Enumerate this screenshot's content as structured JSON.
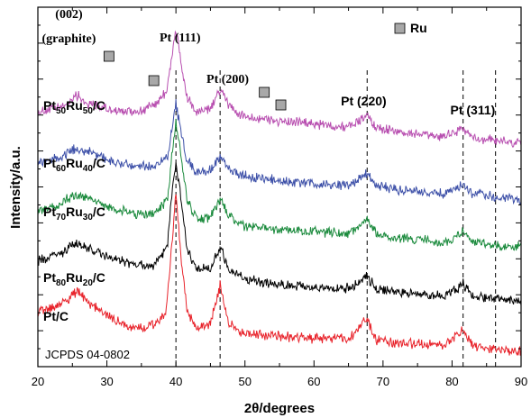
{
  "chart_data": {
    "type": "line",
    "xlabel": "2θ/degrees",
    "ylabel": "Intensity/a.u.",
    "xlim": [
      20,
      90
    ],
    "x_ticks": [
      "20",
      "30",
      "40",
      "50",
      "60",
      "70",
      "80",
      "90"
    ],
    "y_ticks_labeled": false,
    "grid": false,
    "reference_text": "JCPDS 04-0802",
    "reference_lines": [
      40.0,
      46.4,
      67.7,
      81.6,
      86.3
    ],
    "peak_labels": [
      {
        "text": "(002)",
        "x": 24.5,
        "font": "serif"
      },
      {
        "text": "(graphite)",
        "x": 24.5,
        "font": "serif"
      },
      {
        "text": "Pt (111)",
        "x": 40.6,
        "font": "serif"
      },
      {
        "text": "Pt (200)",
        "x": 47.5,
        "font": "serif"
      },
      {
        "text": "Pt (220)",
        "x": 67.2,
        "font": "sans"
      },
      {
        "text": "Pt (311)",
        "x": 83.0,
        "font": "sans"
      }
    ],
    "legend": {
      "marker": "Ru",
      "position": "top-right"
    },
    "ru_markers": [
      30.3,
      36.8,
      52.8,
      55.2
    ],
    "series": [
      {
        "label": {
          "base": "Pt",
          "sub1": "50",
          "mid": "Ru",
          "sub2": "50",
          "tail": "/C"
        },
        "color": "#b84fb0",
        "points": [
          [
            20,
            150
          ],
          [
            24,
            154
          ],
          [
            25.5,
            162
          ],
          [
            27,
            156
          ],
          [
            30,
            152
          ],
          [
            32,
            150
          ],
          [
            35,
            151
          ],
          [
            37,
            155
          ],
          [
            38.7,
            165
          ],
          [
            39.5,
            190
          ],
          [
            40.0,
            205
          ],
          [
            40.6,
            188
          ],
          [
            41.5,
            160
          ],
          [
            43,
            150
          ],
          [
            45,
            152
          ],
          [
            46.4,
            165
          ],
          [
            47.5,
            156
          ],
          [
            49,
            148
          ],
          [
            52,
            146
          ],
          [
            55,
            144
          ],
          [
            60,
            142
          ],
          [
            65,
            140
          ],
          [
            67.7,
            148
          ],
          [
            69,
            140
          ],
          [
            72,
            137
          ],
          [
            75,
            135
          ],
          [
            78,
            133
          ],
          [
            81.6,
            139
          ],
          [
            83,
            133
          ],
          [
            86,
            131
          ],
          [
            90,
            129
          ]
        ]
      },
      {
        "label": {
          "base": "Pt",
          "sub1": "60",
          "mid": "Ru",
          "sub2": "40",
          "tail": "/C"
        },
        "color": "#3d50a8",
        "points": [
          [
            20,
            116
          ],
          [
            23,
            119
          ],
          [
            25.5,
            126
          ],
          [
            28,
            122
          ],
          [
            31,
            117
          ],
          [
            34,
            114
          ],
          [
            37,
            114
          ],
          [
            38.8,
            121
          ],
          [
            39.5,
            140
          ],
          [
            40.0,
            155
          ],
          [
            40.6,
            140
          ],
          [
            41.6,
            118
          ],
          [
            43,
            110
          ],
          [
            45,
            111
          ],
          [
            46.4,
            120
          ],
          [
            47.6,
            112
          ],
          [
            50,
            107
          ],
          [
            55,
            104
          ],
          [
            60,
            102
          ],
          [
            65,
            101
          ],
          [
            67.7,
            109
          ],
          [
            69,
            101
          ],
          [
            72,
            98
          ],
          [
            76,
            96
          ],
          [
            79,
            95
          ],
          [
            81.6,
            101
          ],
          [
            83,
            95
          ],
          [
            86,
            93
          ],
          [
            90,
            91
          ]
        ]
      },
      {
        "label": {
          "base": "Pt",
          "sub1": "70",
          "mid": "Ru",
          "sub2": "30",
          "tail": "/C"
        },
        "color": "#1a8a3c",
        "points": [
          [
            20,
            84
          ],
          [
            23,
            88
          ],
          [
            25.5,
            95
          ],
          [
            28,
            91
          ],
          [
            31,
            85
          ],
          [
            34,
            82
          ],
          [
            37,
            82
          ],
          [
            38.8,
            92
          ],
          [
            39.5,
            125
          ],
          [
            40.0,
            144
          ],
          [
            40.6,
            125
          ],
          [
            41.6,
            92
          ],
          [
            43,
            78
          ],
          [
            45,
            80
          ],
          [
            46.4,
            92
          ],
          [
            47.6,
            80
          ],
          [
            50,
            74
          ],
          [
            55,
            72
          ],
          [
            60,
            70
          ],
          [
            65,
            69
          ],
          [
            67.7,
            78
          ],
          [
            69,
            69
          ],
          [
            72,
            66
          ],
          [
            76,
            64
          ],
          [
            79,
            63
          ],
          [
            81.6,
            70
          ],
          [
            83,
            63
          ],
          [
            86,
            61
          ],
          [
            90,
            60
          ]
        ]
      },
      {
        "label": {
          "base": "Pt",
          "sub1": "80",
          "mid": "Ru",
          "sub2": "20",
          "tail": "/C"
        },
        "color": "#000000",
        "points": [
          [
            20,
            50
          ],
          [
            23,
            55
          ],
          [
            25.5,
            62
          ],
          [
            28,
            57
          ],
          [
            31,
            52
          ],
          [
            34,
            48
          ],
          [
            37,
            47
          ],
          [
            38.8,
            62
          ],
          [
            39.5,
            100
          ],
          [
            40.0,
            114
          ],
          [
            40.6,
            98
          ],
          [
            41.6,
            60
          ],
          [
            43,
            44
          ],
          [
            45,
            46
          ],
          [
            46.4,
            60
          ],
          [
            47.6,
            46
          ],
          [
            50,
            38
          ],
          [
            55,
            35
          ],
          [
            60,
            33
          ],
          [
            65,
            32
          ],
          [
            67.7,
            41
          ],
          [
            69,
            32
          ],
          [
            72,
            30
          ],
          [
            76,
            28
          ],
          [
            79,
            27
          ],
          [
            81.6,
            35
          ],
          [
            83,
            27
          ],
          [
            86,
            25
          ],
          [
            90,
            23
          ]
        ]
      },
      {
        "label": {
          "base": "Pt/C"
        },
        "color": "#e8232b",
        "points": [
          [
            20,
            16
          ],
          [
            22,
            19
          ],
          [
            24,
            24
          ],
          [
            25.8,
            30
          ],
          [
            27,
            24
          ],
          [
            30,
            14
          ],
          [
            33,
            7
          ],
          [
            36,
            6
          ],
          [
            38.5,
            14
          ],
          [
            39.3,
            55
          ],
          [
            40.0,
            95
          ],
          [
            40.7,
            55
          ],
          [
            41.6,
            16
          ],
          [
            43,
            5
          ],
          [
            45,
            8
          ],
          [
            46.4,
            34
          ],
          [
            47.7,
            8
          ],
          [
            50,
            2
          ],
          [
            55,
            0
          ],
          [
            60,
            -1
          ],
          [
            65,
            -1
          ],
          [
            67.7,
            12
          ],
          [
            69,
            -2
          ],
          [
            72,
            -4
          ],
          [
            76,
            -5
          ],
          [
            79,
            -6
          ],
          [
            81.6,
            5
          ],
          [
            83,
            -6
          ],
          [
            86,
            -8
          ],
          [
            90,
            -10
          ]
        ]
      }
    ]
  }
}
